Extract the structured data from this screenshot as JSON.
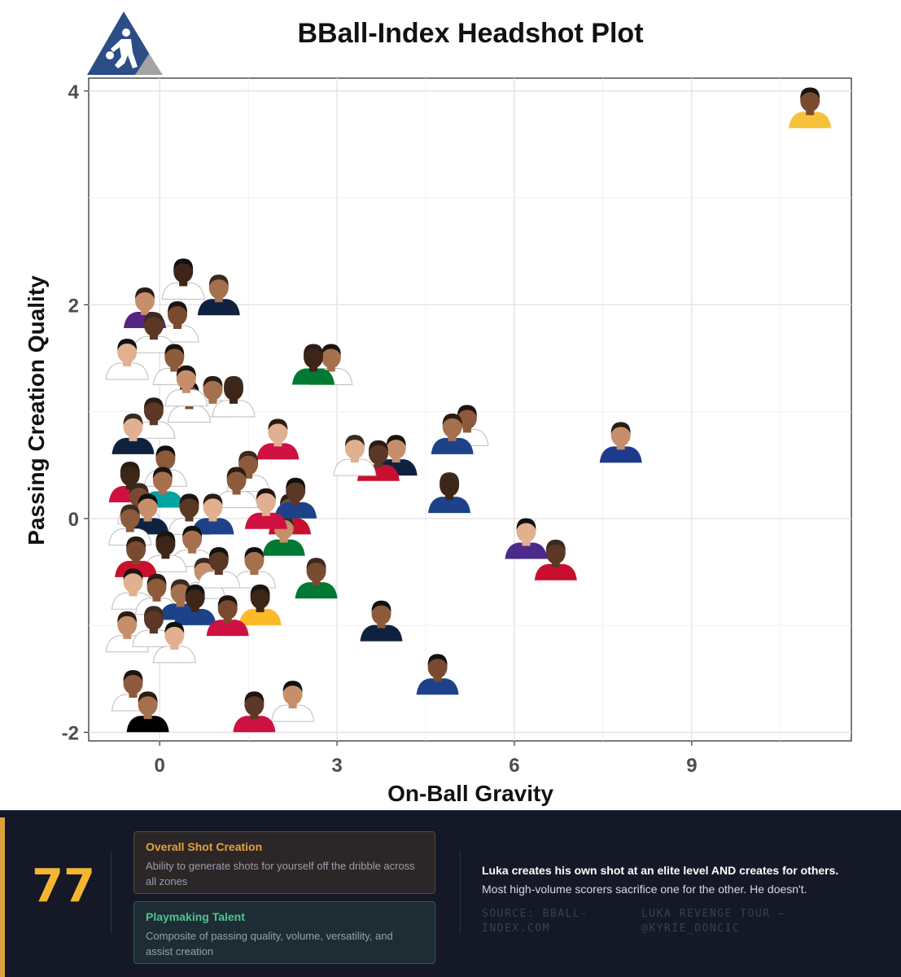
{
  "chart_data": {
    "type": "scatter",
    "title": "BBall-Index Headshot Plot",
    "xlabel": "On-Ball Gravity",
    "ylabel": "Passing Creation Quality",
    "xlim": [
      -1.2,
      11.7
    ],
    "ylim": [
      -2.08,
      4.12
    ],
    "xticks": [
      0,
      3,
      6,
      9
    ],
    "yticks": [
      -2,
      0,
      2,
      4
    ],
    "grid": true,
    "marker": "player headshot",
    "points": [
      {
        "x": 11.0,
        "y": 3.85,
        "jersey": "#f5c23a"
      },
      {
        "x": 7.8,
        "y": 0.72,
        "jersey": "#1d3b8a"
      },
      {
        "x": 6.7,
        "y": -0.38,
        "jersey": "#c8102e"
      },
      {
        "x": 6.2,
        "y": -0.18,
        "jersey": "#4b2a8a"
      },
      {
        "x": 5.2,
        "y": 0.88,
        "jersey": "#ffffff"
      },
      {
        "x": 4.95,
        "y": 0.8,
        "jersey": "#1d428a"
      },
      {
        "x": 4.9,
        "y": 0.25,
        "jersey": "#1d428a"
      },
      {
        "x": 4.7,
        "y": -1.45,
        "jersey": "#1d428a"
      },
      {
        "x": 4.0,
        "y": 0.6,
        "jersey": "#0e2240"
      },
      {
        "x": 3.7,
        "y": 0.55,
        "jersey": "#c8102e"
      },
      {
        "x": 3.3,
        "y": 0.6,
        "jersey": "#ffffff"
      },
      {
        "x": 3.75,
        "y": -0.95,
        "jersey": "#0e2240"
      },
      {
        "x": 2.9,
        "y": 1.45,
        "jersey": "#ffffff"
      },
      {
        "x": 2.6,
        "y": 1.45,
        "jersey": "#007a33"
      },
      {
        "x": 2.65,
        "y": -0.55,
        "jersey": "#007a33"
      },
      {
        "x": 2.25,
        "y": -1.7,
        "jersey": "#ffffff"
      },
      {
        "x": 1.6,
        "y": -1.8,
        "jersey": "#ce1141"
      },
      {
        "x": 2.0,
        "y": 0.75,
        "jersey": "#ce1141"
      },
      {
        "x": 1.5,
        "y": 0.45,
        "jersey": "#ffffff"
      },
      {
        "x": 1.6,
        "y": -0.45,
        "jersey": "#ffffff"
      },
      {
        "x": 1.7,
        "y": -0.8,
        "jersey": "#fdb927"
      },
      {
        "x": 2.2,
        "y": 0.05,
        "jersey": "#c8102e"
      },
      {
        "x": 2.1,
        "y": -0.15,
        "jersey": "#007a33"
      },
      {
        "x": 2.3,
        "y": 0.2,
        "jersey": "#1d428a"
      },
      {
        "x": 1.8,
        "y": 0.1,
        "jersey": "#ce1141"
      },
      {
        "x": 1.3,
        "y": 0.3,
        "jersey": "#ffffff"
      },
      {
        "x": 1.0,
        "y": 2.1,
        "jersey": "#0e2240"
      },
      {
        "x": 0.4,
        "y": 2.25,
        "jersey": "#ffffff"
      },
      {
        "x": 0.3,
        "y": 1.85,
        "jersey": "#ffffff"
      },
      {
        "x": -0.25,
        "y": 1.98,
        "jersey": "#552583"
      },
      {
        "x": -0.1,
        "y": 1.75,
        "jersey": "#ffffff"
      },
      {
        "x": -0.55,
        "y": 1.5,
        "jersey": "#ffffff"
      },
      {
        "x": 0.25,
        "y": 1.45,
        "jersey": "#ffffff"
      },
      {
        "x": 0.9,
        "y": 1.15,
        "jersey": "#ffffff"
      },
      {
        "x": 1.25,
        "y": 1.15,
        "jersey": "#ffffff"
      },
      {
        "x": 0.5,
        "y": 1.1,
        "jersey": "#ffffff"
      },
      {
        "x": 0.45,
        "y": 1.25,
        "jersey": "#ffffff"
      },
      {
        "x": -0.1,
        "y": 0.95,
        "jersey": "#ffffff"
      },
      {
        "x": -0.45,
        "y": 0.8,
        "jersey": "#0e2240"
      },
      {
        "x": 0.1,
        "y": 0.5,
        "jersey": "#ffffff"
      },
      {
        "x": 0.05,
        "y": 0.3,
        "jersey": "#00a3a3"
      },
      {
        "x": -0.5,
        "y": 0.35,
        "jersey": "#ce1141"
      },
      {
        "x": -0.35,
        "y": 0.15,
        "jersey": "#ffffff"
      },
      {
        "x": -0.2,
        "y": 0.05,
        "jersey": "#0e2240"
      },
      {
        "x": 0.5,
        "y": 0.05,
        "jersey": "#ffffff"
      },
      {
        "x": 0.9,
        "y": 0.05,
        "jersey": "#1d428a"
      },
      {
        "x": -0.5,
        "y": -0.05,
        "jersey": "#ffffff"
      },
      {
        "x": 0.55,
        "y": -0.25,
        "jersey": "#ffffff"
      },
      {
        "x": 0.1,
        "y": -0.3,
        "jersey": "#ffffff"
      },
      {
        "x": -0.4,
        "y": -0.35,
        "jersey": "#c8102e"
      },
      {
        "x": 0.75,
        "y": -0.55,
        "jersey": "#ffffff"
      },
      {
        "x": 1.0,
        "y": -0.45,
        "jersey": "#ffffff"
      },
      {
        "x": -0.45,
        "y": -0.65,
        "jersey": "#ffffff"
      },
      {
        "x": -0.05,
        "y": -0.7,
        "jersey": "#ffffff"
      },
      {
        "x": 0.35,
        "y": -0.75,
        "jersey": "#1d428a"
      },
      {
        "x": 0.6,
        "y": -0.8,
        "jersey": "#1d428a"
      },
      {
        "x": 1.15,
        "y": -0.9,
        "jersey": "#ce1141"
      },
      {
        "x": -0.55,
        "y": -1.05,
        "jersey": "#ffffff"
      },
      {
        "x": -0.1,
        "y": -1.0,
        "jersey": "#ffffff"
      },
      {
        "x": 0.25,
        "y": -1.15,
        "jersey": "#ffffff"
      },
      {
        "x": -0.45,
        "y": -1.6,
        "jersey": "#ffffff"
      },
      {
        "x": -0.2,
        "y": -1.8,
        "jersey": "#000000"
      }
    ]
  },
  "footer": {
    "score": "77",
    "card_1": {
      "title": "Overall Shot Creation",
      "desc": "Ability to generate shots for yourself off the dribble across all zones"
    },
    "card_2": {
      "title": "Playmaking Talent",
      "desc": "Composite of passing quality, volume, versatility, and assist creation"
    },
    "note_line_1": "Luka creates his own shot at an elite level AND creates for others.",
    "note_line_2": "Most high-volume scorers sacrifice one for the other. He doesn't.",
    "source": "Source: BBall-Index.com",
    "credit": "Luka Revenge Tour — @kyrie_doncic"
  },
  "colors": {
    "accent": "#f5b533",
    "footer_bg": "#141827",
    "logo_blue": "#2c4d86",
    "logo_gray": "#a3a3a3"
  },
  "icons": [
    "bball-index-logo",
    "player-headshot"
  ]
}
